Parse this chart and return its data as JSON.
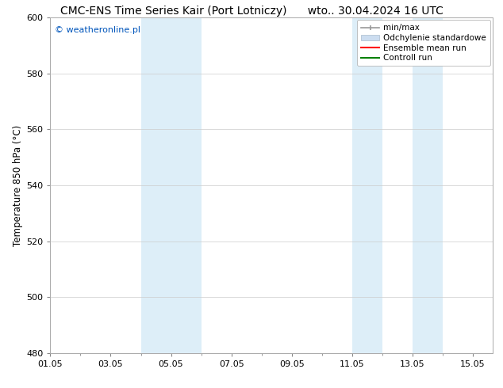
{
  "title_left": "CMC-ENS Time Series Kair (Port Lotniczy)",
  "title_right": "wto.. 30.04.2024 16 UTC",
  "ylabel": "Temperature 850 hPa (°C)",
  "ylim": [
    480,
    600
  ],
  "yticks": [
    480,
    500,
    520,
    540,
    560,
    580,
    600
  ],
  "xtick_labels": [
    "01.05",
    "03.05",
    "05.05",
    "07.05",
    "09.05",
    "11.05",
    "13.05",
    "15.05"
  ],
  "xtick_positions": [
    0,
    2,
    4,
    6,
    8,
    10,
    12,
    14
  ],
  "xlim": [
    0,
    14.667
  ],
  "shaded_bands": [
    {
      "x_start": 3.0,
      "x_end": 4.0
    },
    {
      "x_start": 4.0,
      "x_end": 5.0
    },
    {
      "x_start": 10.0,
      "x_end": 11.0
    },
    {
      "x_start": 12.0,
      "x_end": 13.0
    }
  ],
  "shade_color": "#ddeef8",
  "watermark_text": "© weatheronline.pl",
  "watermark_color": "#0055bb",
  "legend_labels": [
    "min/max",
    "Odchylenie standardowe",
    "Ensemble mean run",
    "Controll run"
  ],
  "legend_colors_line": [
    "#aaaaaa",
    "#c8ddf0",
    "red",
    "green"
  ],
  "bg_color": "#ffffff",
  "plot_bg_color": "#ffffff",
  "grid_color": "#cccccc",
  "title_fontsize": 10,
  "tick_fontsize": 8,
  "ylabel_fontsize": 8.5,
  "watermark_fontsize": 8,
  "legend_fontsize": 7.5
}
